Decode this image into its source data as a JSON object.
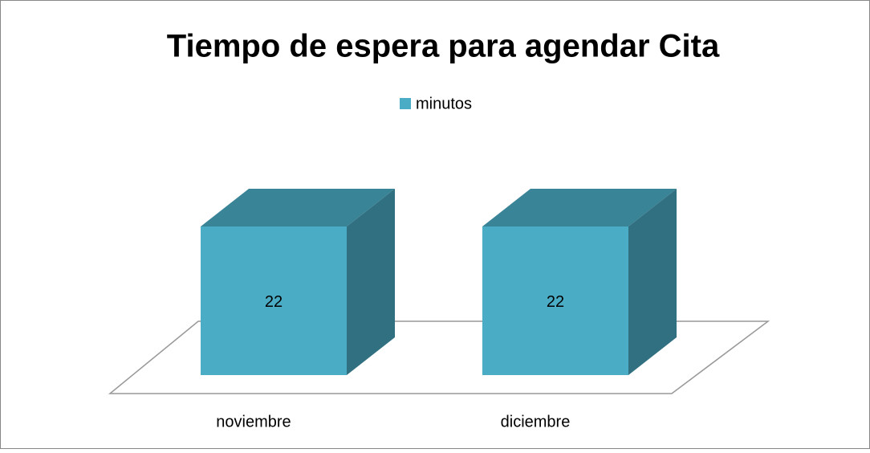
{
  "chart_data": {
    "type": "bar3d",
    "title": "Tiempo de espera para agendar Cita",
    "categories": [
      "noviembre",
      "diciembre"
    ],
    "series": [
      {
        "name": "minutos",
        "color": "#4bacc6",
        "values": [
          22,
          22
        ]
      }
    ]
  }
}
